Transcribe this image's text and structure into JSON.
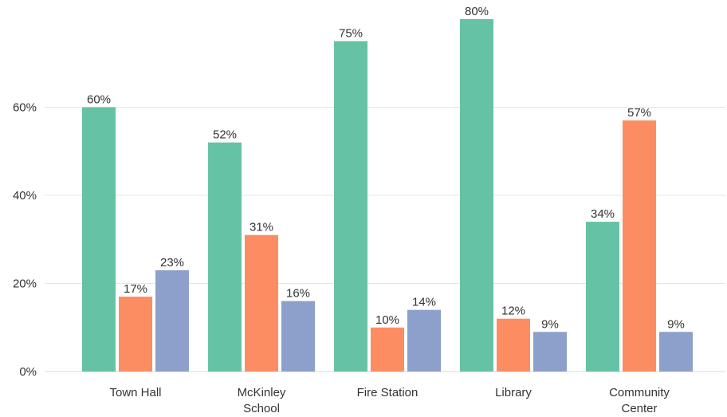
{
  "chart_data": {
    "type": "bar",
    "title": "",
    "xlabel": "",
    "ylabel": "",
    "categories": [
      [
        "Town Hall"
      ],
      [
        "McKinley",
        "School"
      ],
      [
        "Fire Station"
      ],
      [
        "Library"
      ],
      [
        "Community",
        "Center"
      ]
    ],
    "series": [
      {
        "values": [
          60,
          52,
          75,
          80,
          34
        ],
        "color": "#66c2a5"
      },
      {
        "values": [
          17,
          31,
          10,
          12,
          57
        ],
        "color": "#fc8d62"
      },
      {
        "values": [
          23,
          16,
          14,
          9,
          9
        ],
        "color": "#8da0cb"
      }
    ],
    "value_labels": [
      [
        "60%",
        "52%",
        "75%",
        "80%",
        "34%"
      ],
      [
        "17%",
        "31%",
        "10%",
        "12%",
        "57%"
      ],
      [
        "23%",
        "16%",
        "14%",
        "9%",
        "9%"
      ]
    ],
    "yticks": [
      0,
      20,
      40,
      60
    ],
    "ytick_labels": [
      "0%",
      "20%",
      "40%",
      "60%"
    ],
    "ylim": [
      0,
      80
    ],
    "grid": true,
    "legend": "none"
  }
}
